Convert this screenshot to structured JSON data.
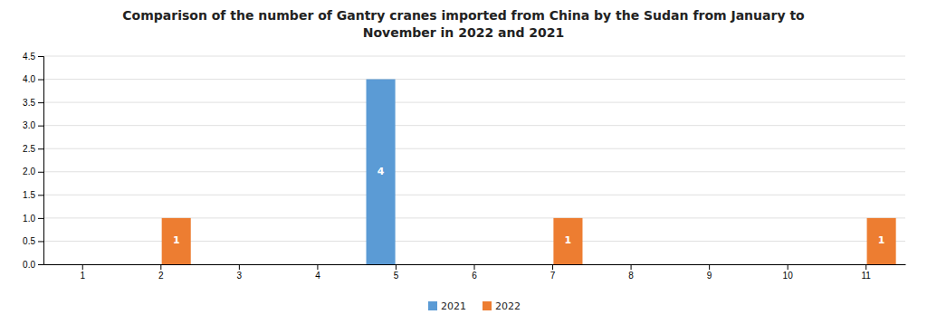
{
  "chart_data": {
    "type": "bar",
    "title": "Comparison of the number of Gantry cranes imported from China by the Sudan from January to\nNovember in 2022 and 2021",
    "categories": [
      "1",
      "2",
      "3",
      "4",
      "5",
      "6",
      "7",
      "8",
      "9",
      "10",
      "11"
    ],
    "series": [
      {
        "name": "2021",
        "color": "#5B9BD5",
        "values": [
          0,
          0,
          0,
          0,
          4,
          0,
          0,
          0,
          0,
          0,
          0
        ]
      },
      {
        "name": "2022",
        "color": "#ED7D31",
        "values": [
          0,
          1,
          0,
          0,
          0,
          0,
          1,
          0,
          0,
          0,
          1
        ]
      }
    ],
    "ylim": [
      0,
      4.5
    ],
    "yticks": [
      {
        "value": 0,
        "label": "0.0"
      },
      0.5,
      {
        "value": 1,
        "label": "1.0"
      },
      1.5,
      {
        "value": 2,
        "label": "2.0"
      },
      2.5,
      {
        "value": 3,
        "label": "3.0"
      },
      3.5,
      {
        "value": 4,
        "label": "4.0"
      },
      4.5
    ],
    "grid": true,
    "legend": "bottom",
    "data_labels": true
  }
}
